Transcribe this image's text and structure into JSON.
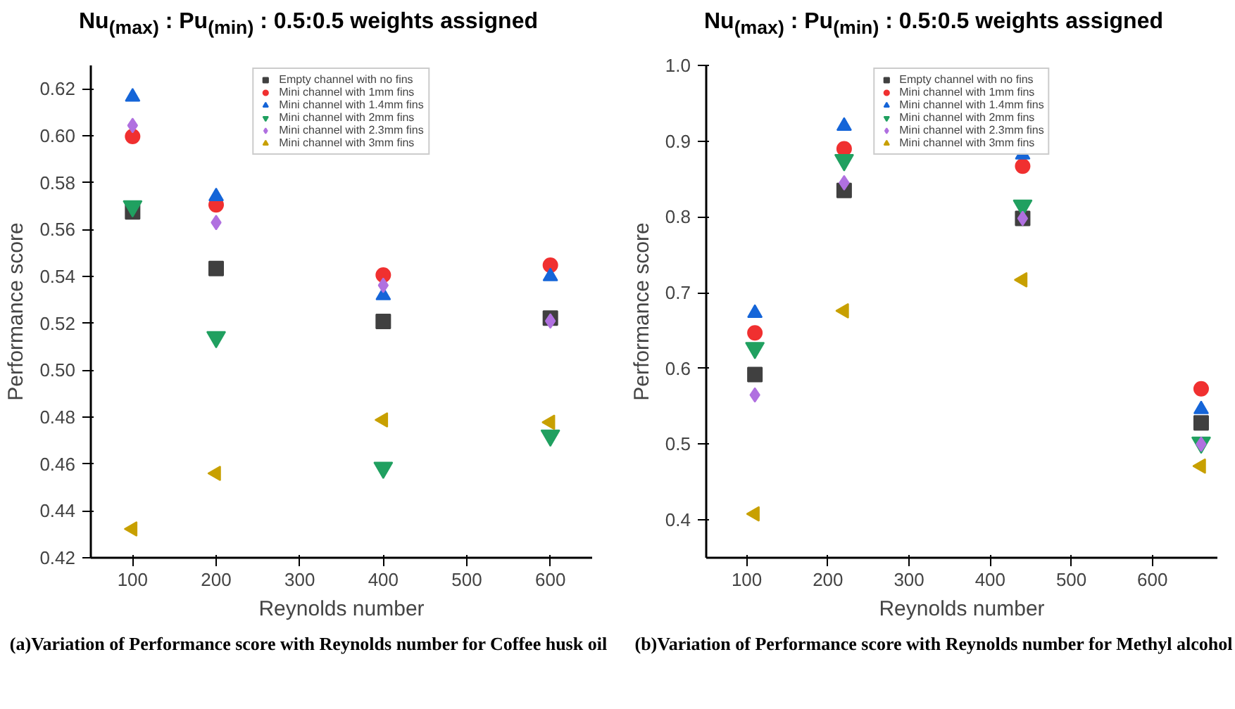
{
  "chart_data": [
    {
      "type": "scatter",
      "title": "Nu$_{(max)}$ : Pu$_{(min)}$ : 0.5:0.5 weights assigned",
      "xlabel": "Reynolds number",
      "ylabel": "Performance score",
      "x": [
        100,
        200,
        400,
        600
      ],
      "series": [
        {
          "name": "Empty channel with no fins",
          "color": "#404040",
          "marker": "square",
          "values": [
            0.5675,
            0.5434,
            0.5208,
            0.5222
          ]
        },
        {
          "name": "Mini channel with 1mm fins",
          "color": "#f03030",
          "marker": "circle",
          "values": [
            0.5997,
            0.5705,
            0.5406,
            0.5448
          ]
        },
        {
          "name": "Mini channel with 1.4mm fins",
          "color": "#1565d8",
          "marker": "triangle",
          "values": [
            0.6166,
            0.5741,
            0.5319,
            0.54
          ]
        },
        {
          "name": "Mini channel with 2mm fins",
          "color": "#20a060",
          "marker": "triangle_down",
          "values": [
            0.5699,
            0.5141,
            0.4584,
            0.4721
          ]
        },
        {
          "name": "Mini channel with 2.3mm fins",
          "color": "#b070e0",
          "marker": "diamond",
          "values": [
            0.6044,
            0.563,
            0.5362,
            0.521
          ]
        },
        {
          "name": "Mini channel with 3mm fins",
          "color": "#c8a000",
          "marker": "triangle_left",
          "values": [
            0.4323,
            0.456,
            0.4788,
            0.4778
          ]
        }
      ],
      "xlim": [
        50,
        650
      ],
      "xticks": [
        100,
        200,
        300,
        400,
        500,
        600
      ],
      "ylim": [
        0.42,
        0.63
      ],
      "yticks": [
        {
          "value": 0.42,
          "label": "0.42"
        },
        {
          "value": 0.44,
          "label": "0.44"
        },
        {
          "value": 0.46,
          "label": "0.46"
        },
        {
          "value": 0.48,
          "label": "0.48"
        },
        {
          "value": 0.5,
          "label": "0.50"
        },
        {
          "value": 0.52,
          "label": "0.52"
        },
        {
          "value": 0.54,
          "label": "0.54"
        },
        {
          "value": 0.56,
          "label": "0.56"
        },
        {
          "value": 0.58,
          "label": "0.58"
        },
        {
          "value": 0.6,
          "label": "0.60"
        },
        {
          "value": 0.62,
          "label": "0.62"
        }
      ],
      "legend": "top",
      "grid": false,
      "annotations": [
        "(a)Variation of Performance score with Reynolds number for Coffee husk oil"
      ]
    },
    {
      "type": "scatter",
      "title": "Nu$_{(max)}$ : Pu$_{(min)}$ : 0.5:0.5 weights assigned",
      "xlabel": "Reynolds number",
      "ylabel": "Performance score",
      "x": [
        110,
        220,
        440,
        660
      ],
      "series": [
        {
          "name": "Empty channel with no fins",
          "color": "#404040",
          "marker": "square",
          "values": [
            0.592,
            0.835,
            0.798,
            0.528
          ]
        },
        {
          "name": "Mini channel with 1mm fins",
          "color": "#f03030",
          "marker": "circle",
          "values": [
            0.647,
            0.89,
            0.867,
            0.573
          ]
        },
        {
          "name": "Mini channel with 1.4mm fins",
          "color": "#1565d8",
          "marker": "triangle",
          "values": [
            0.673,
            0.92,
            0.882,
            0.546
          ]
        },
        {
          "name": "Mini channel with 2mm fins",
          "color": "#20a060",
          "marker": "triangle_down",
          "values": [
            0.627,
            0.875,
            0.815,
            0.502
          ]
        },
        {
          "name": "Mini channel with 2.3mm fins",
          "color": "#b070e0",
          "marker": "diamond",
          "values": [
            0.565,
            0.845,
            0.798,
            0.5
          ]
        },
        {
          "name": "Mini channel with 3mm fins",
          "color": "#c8a000",
          "marker": "triangle_left",
          "values": [
            0.408,
            0.676,
            0.717,
            0.471
          ]
        }
      ],
      "xlim": [
        50,
        680
      ],
      "xticks": [
        100,
        200,
        300,
        400,
        500,
        600
      ],
      "ylim": [
        0.35,
        1.0
      ],
      "yticks": [
        {
          "value": 0.4,
          "label": "0.4"
        },
        {
          "value": 0.5,
          "label": "0.5"
        },
        {
          "value": 0.6,
          "label": "0.6"
        },
        {
          "value": 0.7,
          "label": "0.7"
        },
        {
          "value": 0.8,
          "label": "0.8"
        },
        {
          "value": 0.9,
          "label": "0.9"
        },
        {
          "value": 1.0,
          "label": "1.0"
        }
      ],
      "legend": "top",
      "grid": false,
      "annotations": [
        "(b)Variation of Performance score with Reynolds number for Methyl alcohol"
      ]
    }
  ]
}
